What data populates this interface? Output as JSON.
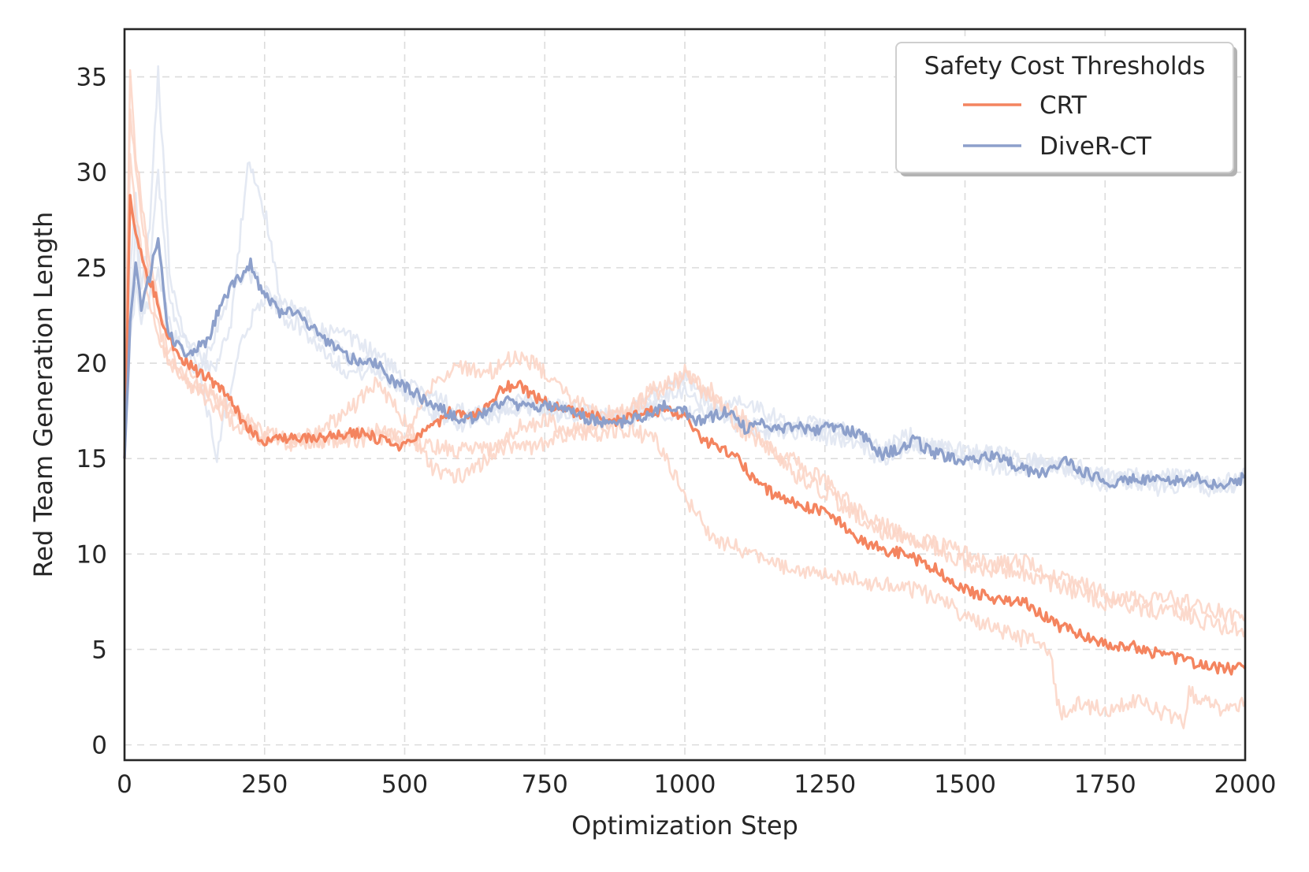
{
  "chart_data": {
    "type": "line",
    "title": "",
    "xlabel": "Optimization Step",
    "ylabel": "Red Team Generation Length",
    "xlim": [
      0,
      2000
    ],
    "ylim": [
      -0.8,
      37.5
    ],
    "xticks": [
      0,
      250,
      500,
      750,
      1000,
      1250,
      1500,
      1750,
      2000
    ],
    "yticks": [
      0,
      5,
      10,
      15,
      20,
      25,
      30,
      35
    ],
    "xtick_labels": [
      "0",
      "250",
      "500",
      "750",
      "1000",
      "1250",
      "1500",
      "1750",
      "2000"
    ],
    "ytick_labels": [
      "0",
      "5",
      "10",
      "15",
      "20",
      "25",
      "30",
      "35"
    ],
    "grid": true,
    "legend": {
      "title": "Safety Cost Thresholds",
      "placement": "top-right",
      "entries": [
        "CRT",
        "DiveR-CT"
      ]
    },
    "series": [
      {
        "name": "CRT",
        "color": "#f4845f",
        "role": "mean",
        "x": [
          0,
          10,
          20,
          35,
          50,
          70,
          90,
          110,
          130,
          150,
          170,
          190,
          210,
          230,
          250,
          280,
          310,
          340,
          370,
          400,
          430,
          460,
          490,
          520,
          550,
          580,
          610,
          640,
          670,
          700,
          730,
          760,
          790,
          820,
          850,
          880,
          910,
          940,
          970,
          1000,
          1030,
          1060,
          1090,
          1120,
          1150,
          1180,
          1210,
          1240,
          1270,
          1300,
          1330,
          1360,
          1390,
          1420,
          1450,
          1480,
          1510,
          1540,
          1570,
          1600,
          1630,
          1660,
          1690,
          1720,
          1750,
          1780,
          1810,
          1840,
          1870,
          1900,
          1930,
          1960,
          2000
        ],
        "values": [
          15,
          28.5,
          27,
          25,
          24,
          22,
          20.5,
          20,
          19.6,
          19.2,
          18.7,
          18,
          17,
          16.3,
          16,
          16.1,
          16,
          16.1,
          16.2,
          16.3,
          16.3,
          15.9,
          15.7,
          16,
          16.6,
          17.4,
          17.2,
          17.6,
          18.5,
          19,
          18.3,
          17.8,
          17.5,
          17.3,
          17.1,
          17,
          17.2,
          17.5,
          17.5,
          17.2,
          16,
          15.6,
          15.2,
          14,
          13.3,
          12.8,
          12.5,
          12.3,
          11.8,
          11,
          10.5,
          10.2,
          10,
          9.6,
          9.2,
          8.4,
          8,
          7.8,
          7.5,
          7.6,
          7,
          6.3,
          6,
          5.6,
          5.3,
          5.2,
          5.1,
          4.8,
          4.6,
          4.3,
          4.1,
          4,
          4
        ]
      },
      {
        "name": "CRT",
        "color": "#fcd3c4",
        "role": "run",
        "x": [
          0,
          10,
          20,
          40,
          60,
          80,
          110,
          150,
          200,
          250,
          300,
          350,
          400,
          450,
          500,
          550,
          600,
          650,
          700,
          750,
          800,
          850,
          900,
          950,
          1000,
          1050,
          1100,
          1150,
          1200,
          1250,
          1300,
          1350,
          1400,
          1450,
          1500,
          1550,
          1600,
          1650,
          1700,
          1750,
          1800,
          1850,
          1900,
          1950,
          2000
        ],
        "values": [
          16,
          35,
          31,
          26,
          23,
          20.5,
          19.5,
          18.5,
          17.5,
          16,
          15.8,
          16,
          16.3,
          16.5,
          16,
          15.6,
          15.4,
          15.6,
          15.5,
          15.8,
          16.3,
          16.8,
          17.5,
          18.8,
          19.5,
          18,
          17.2,
          15.5,
          14,
          13.3,
          12,
          11.2,
          11,
          10.3,
          9.5,
          9.2,
          9,
          8.5,
          8,
          7.5,
          7.6,
          7.8,
          7.4,
          7,
          6.5
        ]
      },
      {
        "name": "CRT",
        "color": "#fcd3c4",
        "role": "run",
        "x": [
          0,
          10,
          20,
          40,
          60,
          80,
          110,
          150,
          200,
          250,
          300,
          350,
          400,
          450,
          500,
          550,
          600,
          650,
          700,
          750,
          800,
          850,
          900,
          950,
          1000,
          1050,
          1100,
          1150,
          1200,
          1250,
          1300,
          1350,
          1400,
          1450,
          1500,
          1550,
          1600,
          1650,
          1670,
          1700,
          1750,
          1800,
          1850,
          1890,
          1900,
          1950,
          2000
        ],
        "values": [
          18,
          33,
          30,
          25.5,
          22,
          20,
          19.2,
          18.3,
          17.2,
          16.3,
          16,
          16.5,
          17.5,
          19,
          17,
          14.5,
          14,
          15,
          16.6,
          17,
          16.5,
          16.3,
          16.5,
          16,
          13,
          10.8,
          10.3,
          9.5,
          9.1,
          8.9,
          8.7,
          8.4,
          8.2,
          7.7,
          6.8,
          6.2,
          5.6,
          5.1,
          1.5,
          2.2,
          1.8,
          2.4,
          1.7,
          1.3,
          2.8,
          1.9,
          2.3
        ]
      },
      {
        "name": "CRT",
        "color": "#fcd3c4",
        "role": "run",
        "x": [
          0,
          10,
          20,
          40,
          60,
          80,
          110,
          150,
          200,
          250,
          300,
          350,
          400,
          450,
          500,
          550,
          600,
          650,
          700,
          750,
          800,
          850,
          900,
          950,
          1000,
          1050,
          1100,
          1150,
          1200,
          1250,
          1300,
          1350,
          1400,
          1450,
          1500,
          1550,
          1600,
          1650,
          1700,
          1750,
          1800,
          1850,
          1900,
          1950,
          2000
        ],
        "values": [
          17,
          31,
          28,
          24,
          21.5,
          20,
          19,
          18,
          16.8,
          15.9,
          15.8,
          15.9,
          16,
          16.1,
          16.3,
          18.8,
          19.8,
          19.5,
          20.5,
          19.5,
          18,
          17.3,
          17.6,
          18.5,
          19.3,
          18.5,
          16.5,
          15.5,
          14.8,
          13.8,
          12.5,
          11.6,
          10.8,
          10.5,
          10,
          9.4,
          9.6,
          9,
          8.5,
          8,
          7.2,
          7,
          6.8,
          6.2,
          6
        ]
      },
      {
        "name": "DiveR-CT",
        "color": "#8da0cb",
        "role": "mean",
        "x": [
          0,
          10,
          20,
          30,
          45,
          60,
          75,
          90,
          110,
          130,
          150,
          170,
          190,
          210,
          225,
          240,
          260,
          280,
          300,
          330,
          360,
          390,
          420,
          450,
          480,
          510,
          540,
          570,
          600,
          630,
          660,
          690,
          720,
          750,
          780,
          810,
          840,
          870,
          900,
          930,
          960,
          990,
          1020,
          1050,
          1080,
          1110,
          1140,
          1170,
          1200,
          1230,
          1260,
          1290,
          1320,
          1350,
          1380,
          1410,
          1440,
          1470,
          1500,
          1530,
          1560,
          1590,
          1620,
          1650,
          1680,
          1710,
          1740,
          1770,
          1800,
          1830,
          1860,
          1890,
          1920,
          1950,
          1980,
          2000
        ],
        "values": [
          15,
          22,
          25.5,
          23,
          24.5,
          26.8,
          22,
          21,
          20.5,
          20.8,
          21.2,
          23,
          24,
          24.6,
          25.2,
          24,
          23.2,
          22.6,
          22.8,
          22,
          21.2,
          20.5,
          20,
          20,
          19,
          18.6,
          18,
          17.5,
          17,
          17.2,
          17.8,
          18,
          17.6,
          17.8,
          17.7,
          17.2,
          17,
          16.8,
          17,
          17.3,
          17.8,
          17.6,
          17,
          17.2,
          17.5,
          16.5,
          16.8,
          16.6,
          16.7,
          16.4,
          16.7,
          16.5,
          16.2,
          15.2,
          15.5,
          16,
          15.3,
          15.1,
          14.8,
          15,
          15.2,
          14.6,
          14.3,
          14.3,
          14.8,
          14.3,
          14,
          13.7,
          14,
          13.8,
          13.9,
          13.8,
          14,
          13.5,
          13.8,
          14
        ]
      },
      {
        "name": "DiveR-CT",
        "color": "#dfe5f1",
        "role": "run",
        "x": [
          0,
          10,
          20,
          30,
          45,
          60,
          80,
          100,
          130,
          160,
          190,
          220,
          250,
          280,
          310,
          350,
          400,
          450,
          500,
          550,
          600,
          650,
          700,
          750,
          800,
          850,
          900,
          950,
          1000,
          1050,
          1100,
          1150,
          1200,
          1250,
          1300,
          1350,
          1400,
          1450,
          1500,
          1550,
          1600,
          1650,
          1700,
          1750,
          1800,
          1850,
          1900,
          1950,
          2000
        ],
        "values": [
          15,
          25,
          29,
          24,
          27,
          35.5,
          25,
          22,
          20.5,
          19.5,
          22,
          30.5,
          28,
          23,
          22.5,
          21.5,
          20.2,
          19.8,
          18.5,
          17.3,
          16.8,
          17.4,
          17.8,
          17.5,
          17.2,
          17,
          17.3,
          18.5,
          19.2,
          18,
          16.6,
          16.3,
          16.5,
          16.1,
          16,
          15,
          15.6,
          15.8,
          15,
          14.6,
          14.5,
          14.9,
          14.2,
          13.6,
          13.9,
          13.4,
          13.8,
          13.3,
          13.6
        ]
      },
      {
        "name": "DiveR-CT",
        "color": "#dfe5f1",
        "role": "run",
        "x": [
          0,
          10,
          20,
          30,
          45,
          60,
          80,
          100,
          130,
          165,
          190,
          220,
          250,
          280,
          310,
          350,
          400,
          450,
          500,
          550,
          600,
          650,
          700,
          750,
          800,
          850,
          900,
          950,
          1000,
          1050,
          1100,
          1150,
          1200,
          1250,
          1300,
          1350,
          1400,
          1450,
          1500,
          1550,
          1600,
          1650,
          1700,
          1750,
          1800,
          1850,
          1900,
          1950,
          2000
        ],
        "values": [
          16,
          23,
          27,
          22.5,
          25,
          30,
          23.5,
          21.5,
          20,
          15.2,
          19,
          22,
          23.5,
          23,
          22.8,
          21.8,
          21.3,
          20.5,
          19.2,
          18.3,
          17.5,
          17.1,
          17.6,
          17.8,
          17.6,
          17.3,
          17.2,
          17.5,
          17.3,
          17.4,
          18.2,
          17.3,
          16.9,
          16.7,
          16.3,
          15.4,
          15.8,
          15.5,
          15.2,
          15.4,
          15,
          14.7,
          14.3,
          14.1,
          13.8,
          14.1,
          13.9,
          13.6,
          14.2
        ]
      },
      {
        "name": "DiveR-CT",
        "color": "#dfe5f1",
        "role": "run",
        "x": [
          0,
          10,
          20,
          30,
          45,
          60,
          80,
          100,
          130,
          160,
          190,
          220,
          250,
          280,
          310,
          350,
          400,
          450,
          500,
          550,
          600,
          650,
          700,
          750,
          800,
          850,
          900,
          950,
          1000,
          1050,
          1100,
          1150,
          1200,
          1250,
          1300,
          1350,
          1400,
          1450,
          1500,
          1550,
          1600,
          1650,
          1700,
          1750,
          1800,
          1850,
          1900,
          1950,
          2000
        ],
        "values": [
          15.5,
          21,
          24,
          22,
          23.5,
          25,
          22,
          20.8,
          19.5,
          21.5,
          24,
          24.8,
          24,
          22.5,
          22,
          20.8,
          19.5,
          19.6,
          18.6,
          17.4,
          17,
          17.6,
          18.1,
          17.7,
          17.4,
          17.1,
          16.8,
          17.9,
          18.6,
          17.5,
          16.9,
          16.6,
          16.4,
          16.6,
          16.4,
          15.5,
          16.2,
          15.6,
          15.4,
          15.3,
          14.6,
          14.7,
          14.6,
          13.9,
          14.2,
          13.7,
          14,
          13.2,
          13.9
        ]
      }
    ]
  }
}
